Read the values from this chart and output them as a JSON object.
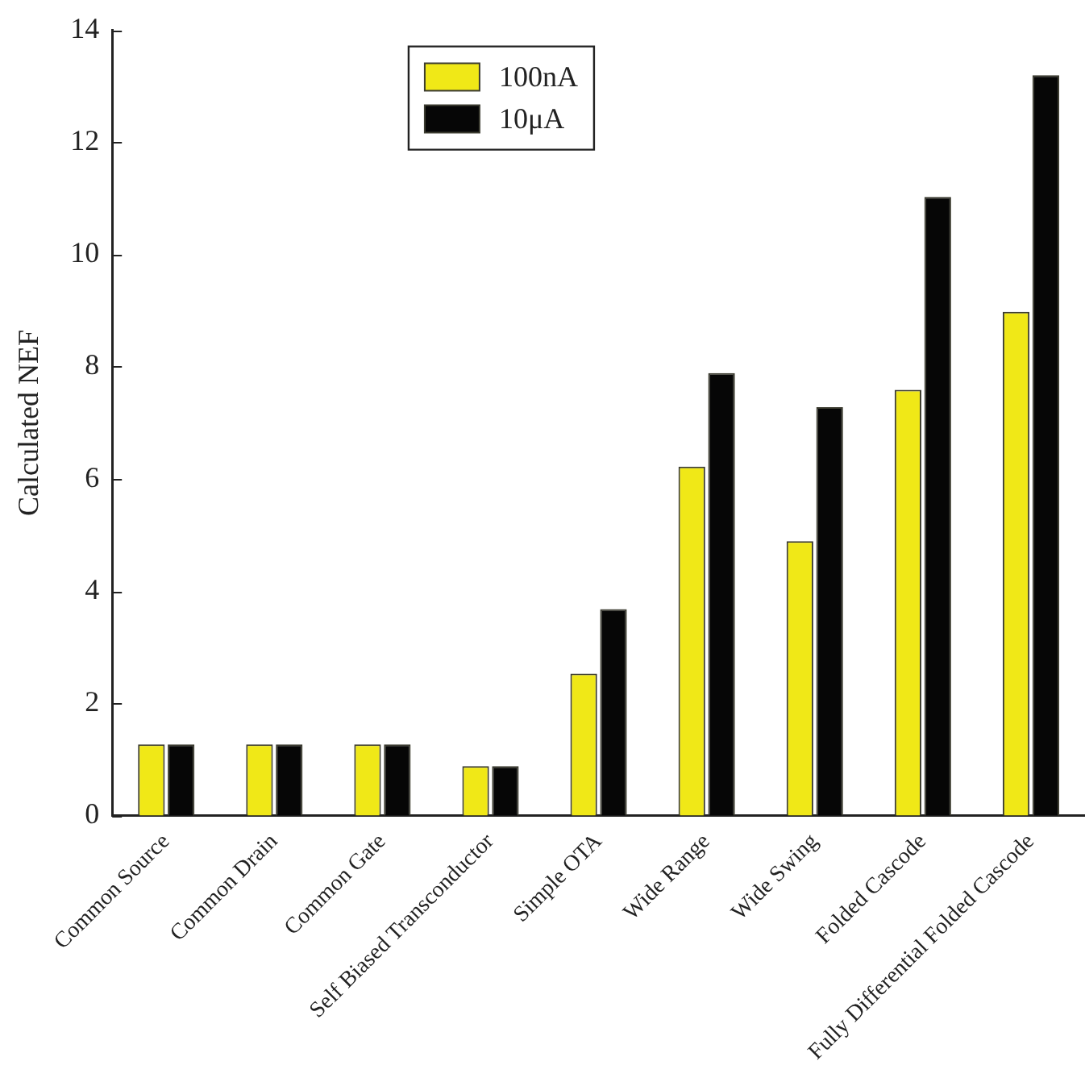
{
  "chart_data": {
    "type": "bar",
    "ylabel": "Calculated NEF",
    "categories": [
      "Common Source",
      "Common Drain",
      "Common Gate",
      "Self Biased Transconductor",
      "Simple OTA",
      "Wide Range",
      "Wide Swing",
      "Folded Cascode",
      "Fully Differential Folded Cascode"
    ],
    "series": [
      {
        "name": "100nA",
        "color": "#f0e817",
        "values": [
          1.27,
          1.27,
          1.27,
          0.88,
          2.53,
          6.22,
          4.89,
          7.59,
          8.98
        ]
      },
      {
        "name": "10μA",
        "color": "#060606",
        "values": [
          1.27,
          1.27,
          1.27,
          0.88,
          3.68,
          7.89,
          7.28,
          11.03,
          13.2
        ]
      }
    ],
    "ylim": [
      0,
      14
    ],
    "yticks": [
      0,
      2,
      4,
      6,
      8,
      10,
      12,
      14
    ],
    "legend": "top"
  }
}
